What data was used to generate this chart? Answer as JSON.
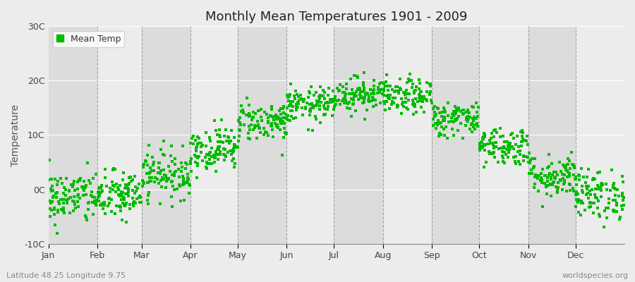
{
  "title": "Monthly Mean Temperatures 1901 - 2009",
  "ylabel": "Temperature",
  "bottom_left_text": "Latitude 48.25 Longitude 9.75",
  "bottom_right_text": "worldspecies.org",
  "ylim": [
    -10,
    30
  ],
  "yticks": [
    -10,
    0,
    10,
    20,
    30
  ],
  "ytick_labels": [
    "-10C",
    "0C",
    "10C",
    "20C",
    "30C"
  ],
  "months": [
    "Jan",
    "Feb",
    "Mar",
    "Apr",
    "May",
    "Jun",
    "Jul",
    "Aug",
    "Sep",
    "Oct",
    "Nov",
    "Dec"
  ],
  "month_days": [
    31,
    28,
    31,
    30,
    31,
    30,
    31,
    31,
    30,
    31,
    30,
    31
  ],
  "dot_color": "#00bb00",
  "background_color": "#ececec",
  "plot_bg_light": "#ececec",
  "plot_bg_dark": "#dcdcdc",
  "grid_color": "#888888",
  "legend_label": "Mean Temp",
  "num_years": 109,
  "monthly_means": [
    -1.5,
    -1.2,
    2.8,
    7.5,
    12.5,
    15.5,
    17.5,
    17.0,
    13.0,
    8.0,
    2.5,
    -1.0
  ],
  "monthly_stds": [
    2.5,
    2.3,
    2.2,
    2.0,
    1.8,
    1.6,
    1.6,
    1.6,
    1.6,
    1.8,
    2.0,
    2.3
  ]
}
